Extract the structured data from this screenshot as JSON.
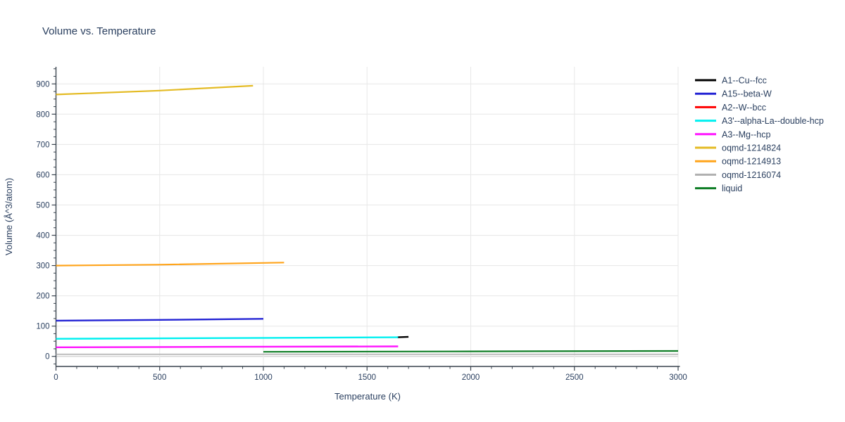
{
  "chart_data": {
    "type": "line",
    "title": "Volume vs. Temperature",
    "xlabel": "Temperature (K)",
    "ylabel": "Volume (Å^3/atom)",
    "x_range": [
      0,
      3000
    ],
    "y_range": [
      -35,
      955
    ],
    "x_ticks": [
      0,
      500,
      1000,
      1500,
      2000,
      2500,
      3000
    ],
    "y_ticks": [
      0,
      100,
      200,
      300,
      400,
      500,
      600,
      700,
      800,
      900
    ],
    "x_minor_step": 100,
    "y_minor_step": 25,
    "grid": true,
    "legend_position": "right",
    "series": [
      {
        "name": "A1--Cu--fcc",
        "color": "#000000",
        "width": 2.4,
        "x": [
          1645,
          1700
        ],
        "y": [
          63,
          64.5
        ],
        "note": "short visible segment past cyan line end"
      },
      {
        "name": "A15--beta-W",
        "color": "#2323d4",
        "width": 2.4,
        "x": [
          0,
          500,
          1000
        ],
        "y": [
          118,
          120.5,
          124
        ]
      },
      {
        "name": "A2--W--bcc",
        "color": "#ff0000",
        "width": 2.4,
        "x": [],
        "y": [],
        "note": "not visibly distinct in plot (overlapped by other lines)"
      },
      {
        "name": "A3'--alpha-La--double-hcp",
        "color": "#00f0f0",
        "width": 2.4,
        "x": [
          0,
          800,
          1650
        ],
        "y": [
          58,
          60.5,
          63
        ]
      },
      {
        "name": "A3--Mg--hcp",
        "color": "#ff14ff",
        "width": 2.4,
        "x": [
          0,
          800,
          1650
        ],
        "y": [
          30,
          31.5,
          33
        ]
      },
      {
        "name": "oqmd-1214824",
        "color": "#e4bb24",
        "width": 2.2,
        "x": [
          0,
          500,
          950
        ],
        "y": [
          865,
          878,
          894
        ]
      },
      {
        "name": "oqmd-1214913",
        "color": "#ffa41b",
        "width": 2.2,
        "x": [
          0,
          500,
          1100
        ],
        "y": [
          300,
          303,
          310
        ]
      },
      {
        "name": "oqmd-1216074",
        "color": "#b0b0b0",
        "width": 1.6,
        "x": [
          0,
          3000
        ],
        "y": [
          7,
          7
        ]
      },
      {
        "name": "liquid",
        "color": "#0e7d25",
        "width": 2.2,
        "x": [
          1000,
          2000,
          3000
        ],
        "y": [
          15,
          16.5,
          18
        ]
      }
    ]
  },
  "colors": {
    "text": "#2a3f5f",
    "grid": "#e9e9e9",
    "zeroline": "#d8d8d8",
    "axis": "#3a444f",
    "background": "#ffffff"
  }
}
